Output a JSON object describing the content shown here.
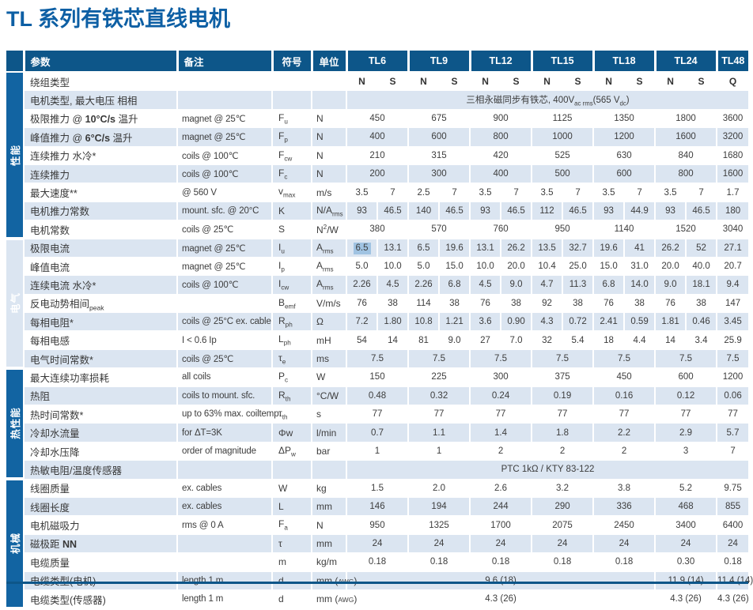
{
  "title": "TL 系列有铁芯直线电机",
  "colors": {
    "title_blue": "#0d5fa4",
    "header_bg": "#0d5689",
    "sidebar_bg": "#1264a2",
    "row_stripe": "#dbe5f1",
    "selection_highlight": "#a0c3e2"
  },
  "table": {
    "headers": {
      "param": "参数",
      "note": "备注",
      "symbol": "符号",
      "unit": "单位"
    },
    "models": [
      "TL6",
      "TL9",
      "TL12",
      "TL15",
      "TL18",
      "TL24",
      "TL48"
    ],
    "sections": [
      {
        "label": "性能",
        "rows": [
          {
            "param": "绕组类型",
            "note": "",
            "symbol": "",
            "unit": "",
            "type": "winding",
            "values": [
              "N",
              "S",
              "N",
              "S",
              "N",
              "S",
              "N",
              "S",
              "N",
              "S",
              "N",
              "S",
              "Q"
            ]
          },
          {
            "param": "电机类型, 最大电压 相相",
            "note": "",
            "symbol": "",
            "unit": "",
            "type": "span",
            "values": [
              "三相永磁同步有铁芯, 400V_{ac rms}(565 V_{dc})"
            ]
          },
          {
            "param": "极限推力 @ **10°C/s** 温升",
            "note": "magnet @ 25℃",
            "symbol": "F_{u}",
            "unit": "N",
            "type": "group",
            "values": [
              "450",
              "675",
              "900",
              "1125",
              "1350",
              "1800",
              "3600"
            ]
          },
          {
            "param": "峰值推力 @ **6°C/s** 温升",
            "note": "magnet @ 25℃",
            "symbol": "F_{p}",
            "unit": "N",
            "type": "group",
            "values": [
              "400",
              "600",
              "800",
              "1000",
              "1200",
              "1600",
              "3200"
            ]
          },
          {
            "param": "连续推力  水冷*",
            "note": "coils @ 100℃",
            "symbol": "F_{cw}",
            "unit": "N",
            "type": "group",
            "values": [
              "210",
              "315",
              "420",
              "525",
              "630",
              "840",
              "1680"
            ]
          },
          {
            "param": "连续推力",
            "note": "coils @ 100℃",
            "symbol": "F_{c}",
            "unit": "N",
            "type": "group",
            "values": [
              "200",
              "300",
              "400",
              "500",
              "600",
              "800",
              "1600"
            ]
          },
          {
            "param": "最大速度**",
            "note": "@ 560 V",
            "symbol": "v_{max}",
            "unit": "m/s",
            "type": "split",
            "values": [
              "3.5",
              "7",
              "2.5",
              "7",
              "3.5",
              "7",
              "3.5",
              "7",
              "3.5",
              "7",
              "3.5",
              "7",
              "1.7"
            ]
          },
          {
            "param": "电机推力常数",
            "note": "mount. sfc. @ 20°C",
            "symbol": "K",
            "unit": "N/A_{rms}",
            "type": "split",
            "values": [
              "93",
              "46.5",
              "140",
              "46.5",
              "93",
              "46.5",
              "112",
              "46.5",
              "93",
              "44.9",
              "93",
              "46.5",
              "180"
            ]
          },
          {
            "param": "电机常数",
            "note": "coils @ 25℃",
            "symbol": "S",
            "unit": "N^{2}/W",
            "type": "group",
            "values": [
              "380",
              "570",
              "760",
              "950",
              "1140",
              "1520",
              "3040"
            ]
          }
        ]
      },
      {
        "label": "电气",
        "rows": [
          {
            "param": "极限电流",
            "note": "magnet @ 25℃",
            "symbol": "I_{u}",
            "unit": "A_{rms}",
            "type": "split",
            "highlight_index": 0,
            "values": [
              "6.5",
              "13.1",
              "6.5",
              "19.6",
              "13.1",
              "26.2",
              "13.5",
              "32.7",
              "19.6",
              "41",
              "26.2",
              "52",
              "27.1"
            ]
          },
          {
            "param": "峰值电流",
            "note": "magnet @ 25℃",
            "symbol": "I_{p}",
            "unit": "A_{rms}",
            "type": "split",
            "values": [
              "5.0",
              "10.0",
              "5.0",
              "15.0",
              "10.0",
              "20.0",
              "10.4",
              "25.0",
              "15.0",
              "31.0",
              "20.0",
              "40.0",
              "20.7"
            ]
          },
          {
            "param": "连续电流  水冷*",
            "note": "coils @ 100℃",
            "symbol": "I_{cw}",
            "unit": "A_{rms}",
            "type": "split",
            "values": [
              "2.26",
              "4.5",
              "2.26",
              "6.8",
              "4.5",
              "9.0",
              "4.7",
              "11.3",
              "6.8",
              "14.0",
              "9.0",
              "18.1",
              "9.4"
            ]
          },
          {
            "param": "反电动势相间_{peak}",
            "note": "",
            "symbol": "B_{emf}",
            "unit": "V/m/s",
            "type": "split",
            "values": [
              "76",
              "38",
              "114",
              "38",
              "76",
              "38",
              "92",
              "38",
              "76",
              "38",
              "76",
              "38",
              "147"
            ]
          },
          {
            "param": "每相电阻*",
            "note": "coils @ 25°C ex. cable",
            "symbol": "R_{ph}",
            "unit": "Ω",
            "type": "split",
            "values": [
              "7.2",
              "1.80",
              "10.8",
              "1.21",
              "3.6",
              "0.90",
              "4.3",
              "0.72",
              "2.41",
              "0.59",
              "1.81",
              "0.46",
              "3.45"
            ]
          },
          {
            "param": "每相电感",
            "note": "I < 0.6 Ip",
            "symbol": "L_{ph}",
            "unit": "mH",
            "type": "split",
            "values": [
              "54",
              "14",
              "81",
              "9.0",
              "27",
              "7.0",
              "32",
              "5.4",
              "18",
              "4.4",
              "14",
              "3.4",
              "25.9"
            ]
          },
          {
            "param": "电气时间常数*",
            "note": "coils @ 25℃",
            "symbol": "τ_{e}",
            "unit": "ms",
            "type": "group",
            "values": [
              "7.5",
              "7.5",
              "7.5",
              "7.5",
              "7.5",
              "7.5",
              "7.5"
            ]
          }
        ]
      },
      {
        "label": "热性能",
        "rows": [
          {
            "param": "最大连续功率损耗",
            "note": "all coils",
            "symbol": "P_{c}",
            "unit": "W",
            "type": "group",
            "values": [
              "150",
              "225",
              "300",
              "375",
              "450",
              "600",
              "1200"
            ]
          },
          {
            "param": "热阻",
            "note": "coils to mount. sfc.",
            "symbol": "R_{th}",
            "unit": "°C/W",
            "type": "group",
            "values": [
              "0.48",
              "0.32",
              "0.24",
              "0.19",
              "0.16",
              "0.12",
              "0.06"
            ]
          },
          {
            "param": "热时间常数*",
            "note": "up to 63% max. coiltemp.",
            "symbol": "τ_{th}",
            "unit": "s",
            "type": "group",
            "values": [
              "77",
              "77",
              "77",
              "77",
              "77",
              "77",
              "77"
            ]
          },
          {
            "param": "冷却水流量",
            "note": "for ΔT=3K",
            "symbol": "Φw",
            "unit": "l/min",
            "type": "group",
            "values": [
              "0.7",
              "1.1",
              "1.4",
              "1.8",
              "2.2",
              "2.9",
              "5.7"
            ]
          },
          {
            "param": "冷却水压降",
            "note": "order of magnitude",
            "symbol": "ΔP_{w}",
            "unit": "bar",
            "type": "group",
            "values": [
              "1",
              "1",
              "2",
              "2",
              "2",
              "3",
              "7"
            ]
          },
          {
            "param": "热敏电阻/温度传感器",
            "note": "",
            "symbol": "",
            "unit": "",
            "type": "span",
            "values": [
              "PTC 1kΩ / KTY 83-122"
            ]
          }
        ]
      },
      {
        "label": "机械",
        "rows": [
          {
            "param": "线圈质量",
            "note": "ex. cables",
            "symbol": "W",
            "unit": "kg",
            "type": "group",
            "values": [
              "1.5",
              "2.0",
              "2.6",
              "3.2",
              "3.8",
              "5.2",
              "9.75"
            ]
          },
          {
            "param": "线圈长度",
            "note": "ex. cables",
            "symbol": "L",
            "unit": "mm",
            "type": "group",
            "values": [
              "146",
              "194",
              "244",
              "290",
              "336",
              "468",
              "855"
            ]
          },
          {
            "param": "电机磁吸力",
            "note": "rms @ 0 A",
            "symbol": "F_{a}",
            "unit": "N",
            "type": "group",
            "values": [
              "950",
              "1325",
              "1700",
              "2075",
              "2450",
              "3400",
              "6400"
            ]
          },
          {
            "param": "磁极距  **NN**",
            "note": "",
            "symbol": "τ",
            "unit": "mm",
            "type": "group",
            "values": [
              "24",
              "24",
              "24",
              "24",
              "24",
              "24",
              "24"
            ]
          },
          {
            "param": "电缆质量",
            "note": "",
            "symbol": "m",
            "unit": "kg/m",
            "type": "group",
            "values": [
              "0.18",
              "0.18",
              "0.18",
              "0.18",
              "0.18",
              "0.30",
              "0.18"
            ]
          },
          {
            "param": "电缆类型(电机)",
            "note": "length 1 m",
            "symbol": "d",
            "unit": "mm (§AWG§)",
            "type": "cable",
            "values": [
              "9.6 (18)",
              "11.9 (14)",
              "11.4 (14)"
            ]
          },
          {
            "param": "电缆类型(传感器)",
            "note": "length 1 m",
            "symbol": "d",
            "unit": "mm (§AWG§)",
            "type": "cable",
            "values": [
              "4.3 (26)",
              "4.3 (26)",
              "4.3 (26)"
            ]
          }
        ]
      }
    ]
  }
}
